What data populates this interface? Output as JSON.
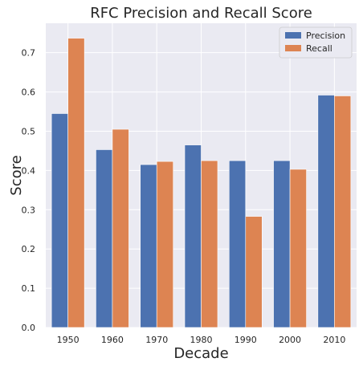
{
  "chart_data": {
    "type": "bar",
    "title": "RFC Precision and Recall Score",
    "xlabel": "Decade",
    "ylabel": "Score",
    "categories": [
      "1950",
      "1960",
      "1970",
      "1980",
      "1990",
      "2000",
      "2010"
    ],
    "series": [
      {
        "name": "Precision",
        "color": "#4c72b0",
        "values": [
          0.545,
          0.453,
          0.415,
          0.465,
          0.425,
          0.425,
          0.592
        ]
      },
      {
        "name": "Recall",
        "color": "#dd8452",
        "values": [
          0.737,
          0.505,
          0.423,
          0.425,
          0.283,
          0.403,
          0.59
        ]
      }
    ],
    "ylim": [
      0,
      0.775
    ],
    "yticks": [
      "0.0",
      "0.1",
      "0.2",
      "0.3",
      "0.4",
      "0.5",
      "0.6",
      "0.7"
    ],
    "grid": true,
    "background_color": "#eaeaf2",
    "legend_position": "top-right"
  }
}
